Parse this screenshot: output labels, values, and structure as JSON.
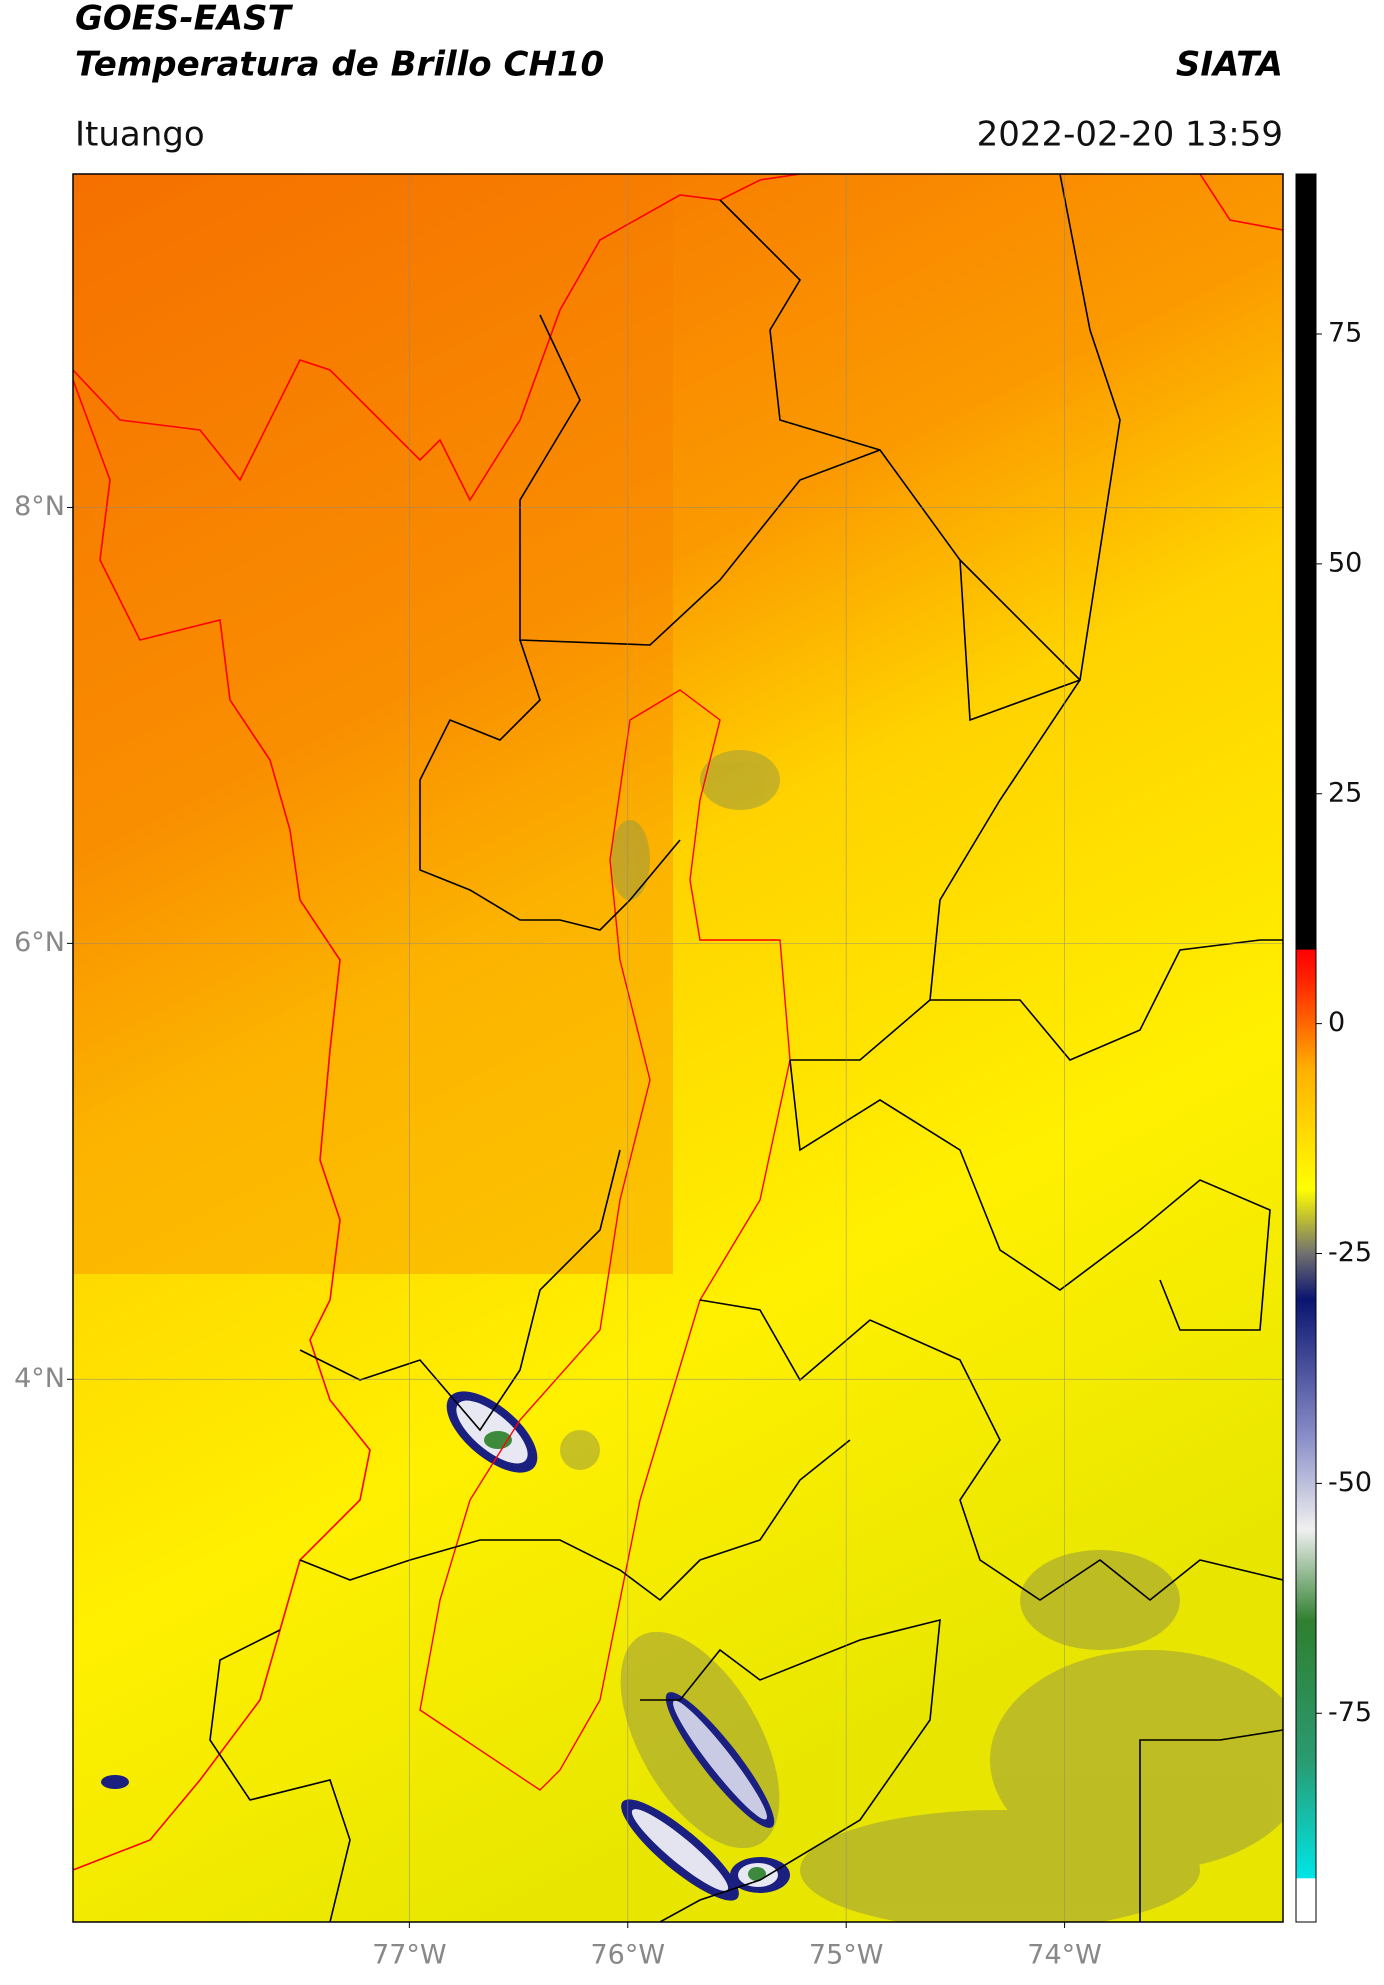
{
  "header": {
    "title": "GOES-EAST",
    "subtitle": "Temperatura de Brillo CH10",
    "source": "SIATA",
    "location": "Ituango",
    "datetime": "2022-02-20 13:59"
  },
  "map": {
    "xlim": [
      -78.54,
      -73.0
    ],
    "ylim": [
      1.51,
      9.53
    ],
    "xticks": [
      {
        "value": -77,
        "label": "77°W"
      },
      {
        "value": -76,
        "label": "76°W"
      },
      {
        "value": -75,
        "label": "75°W"
      },
      {
        "value": -74,
        "label": "74°W"
      }
    ],
    "yticks": [
      {
        "value": 8,
        "label": "8°N"
      },
      {
        "value": 6,
        "label": "6°N"
      },
      {
        "value": 4,
        "label": "4°N"
      }
    ],
    "grid": true
  },
  "colorbar": {
    "clim": [
      -97.7,
      92.4
    ],
    "ticks": [
      75,
      50,
      25,
      0,
      -25,
      -50,
      -75
    ],
    "colormap": [
      {
        "value": -97.7,
        "color": "#ffffff"
      },
      {
        "value": -93,
        "color": "#ffffff"
      },
      {
        "value": -92.9,
        "color": "#00e5e5"
      },
      {
        "value": -80,
        "color": "#2a9a70"
      },
      {
        "value": -65,
        "color": "#2f7f2f"
      },
      {
        "value": -55,
        "color": "#f0f0f0"
      },
      {
        "value": -45,
        "color": "#8a8fc8"
      },
      {
        "value": -30,
        "color": "#0a1470"
      },
      {
        "value": -25,
        "color": "#707070"
      },
      {
        "value": -18,
        "color": "#ffff00"
      },
      {
        "value": -5,
        "color": "#ffb000"
      },
      {
        "value": 5,
        "color": "#ff2000"
      },
      {
        "value": 8,
        "color": "#ff0000"
      },
      {
        "value": 8.1,
        "color": "#000000"
      },
      {
        "value": 92.4,
        "color": "#000000"
      }
    ]
  }
}
